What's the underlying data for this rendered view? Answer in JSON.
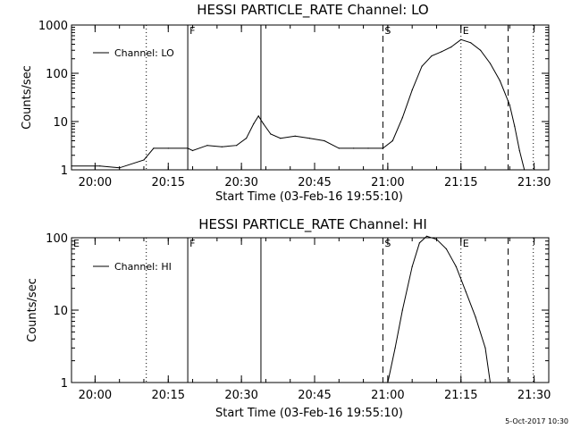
{
  "chart_data": [
    {
      "type": "line",
      "title": "HESSI PARTICLE_RATE Channel: LO",
      "xlabel": "Start Time (03-Feb-16 19:55:10)",
      "ylabel": "Counts/sec",
      "xlim": [
        "19:55:10",
        "21:33:00"
      ],
      "ylim": [
        1,
        1000
      ],
      "yscale": "log",
      "x_ticks": [
        "20:00",
        "20:15",
        "20:30",
        "20:45",
        "21:00",
        "21:15",
        "21:30"
      ],
      "y_ticks": [
        "1",
        "10",
        "100",
        "1000"
      ],
      "legend": {
        "position": "top-left",
        "entries": [
          "Channel: LO"
        ]
      },
      "markers": [
        {
          "label": "",
          "time": "20:10:30",
          "style": "dotted"
        },
        {
          "label": "F",
          "time": "20:19:00",
          "style": "solid"
        },
        {
          "label": "",
          "time": "20:34:00",
          "style": "solid"
        },
        {
          "label": "S",
          "time": "20:59:00",
          "style": "dashed"
        },
        {
          "label": "E",
          "time": "21:15:00",
          "style": "dotted"
        },
        {
          "label": "",
          "time": "21:24:40",
          "style": "dashed"
        },
        {
          "label": "",
          "time": "21:29:50",
          "style": "dotted"
        }
      ],
      "series": [
        {
          "name": "Channel: LO",
          "time_points": [
            "19:55:10",
            "20:01:00",
            "20:05:00",
            "20:10:00",
            "20:12:00",
            "20:15:00",
            "20:19:00",
            "20:20:00",
            "20:23:00",
            "20:26:00",
            "20:29:00",
            "20:31:00",
            "20:32:30",
            "20:33:30",
            "20:34:30",
            "20:36:00",
            "20:38:00",
            "20:41:00",
            "20:44:00",
            "20:47:00",
            "20:50:00",
            "20:53:00",
            "20:56:00",
            "20:59:00",
            "21:01:00",
            "21:03:00",
            "21:05:00",
            "21:07:00",
            "21:09:00",
            "21:11:00",
            "21:13:00",
            "21:15:00",
            "21:17:00",
            "21:19:00",
            "21:21:00",
            "21:23:00",
            "21:25:00",
            "21:26:00",
            "21:27:00",
            "21:28:00"
          ],
          "values": [
            1.2,
            1.2,
            1.1,
            1.6,
            2.8,
            2.8,
            2.8,
            2.5,
            3.2,
            3.0,
            3.2,
            4.5,
            9.0,
            13.0,
            9.0,
            5.5,
            4.5,
            5.0,
            4.5,
            4.0,
            2.8,
            2.8,
            2.8,
            2.8,
            4.0,
            12.0,
            45.0,
            140.0,
            230.0,
            280.0,
            350.0,
            500.0,
            430.0,
            300.0,
            160.0,
            70.0,
            22.0,
            8.0,
            2.5,
            1.0
          ]
        }
      ]
    },
    {
      "type": "line",
      "title": "HESSI PARTICLE_RATE Channel: HI",
      "xlabel": "Start Time (03-Feb-16 19:55:10)",
      "ylabel": "Counts/sec",
      "xlim": [
        "19:55:10",
        "21:33:00"
      ],
      "ylim": [
        1,
        100
      ],
      "yscale": "log",
      "x_ticks": [
        "20:00",
        "20:15",
        "20:30",
        "20:45",
        "21:00",
        "21:15",
        "21:30"
      ],
      "y_ticks": [
        "1",
        "10",
        "100"
      ],
      "legend": {
        "position": "top-left",
        "entries": [
          "Channel: HI"
        ]
      },
      "markers": [
        {
          "label": "E",
          "time": "19:55:10",
          "style": "none"
        },
        {
          "label": "",
          "time": "20:10:30",
          "style": "dotted"
        },
        {
          "label": "F",
          "time": "20:19:00",
          "style": "solid"
        },
        {
          "label": "",
          "time": "20:34:00",
          "style": "solid"
        },
        {
          "label": "S",
          "time": "20:59:00",
          "style": "dashed"
        },
        {
          "label": "E",
          "time": "21:15:00",
          "style": "dotted"
        },
        {
          "label": "",
          "time": "21:24:40",
          "style": "dashed"
        },
        {
          "label": "",
          "time": "21:29:50",
          "style": "dotted"
        }
      ],
      "series": [
        {
          "name": "Channel: HI",
          "time_points": [
            "21:00:00",
            "21:01:30",
            "21:03:00",
            "21:05:00",
            "21:06:30",
            "21:08:00",
            "21:10:00",
            "21:12:00",
            "21:14:00",
            "21:16:00",
            "21:18:00",
            "21:20:00",
            "21:21:00"
          ],
          "values": [
            1.0,
            3.0,
            10.0,
            40.0,
            85.0,
            105.0,
            95.0,
            70.0,
            40.0,
            18.0,
            8.0,
            3.0,
            1.0
          ]
        }
      ]
    }
  ],
  "footer": {
    "timestamp": "5-Oct-2017 10:30"
  }
}
